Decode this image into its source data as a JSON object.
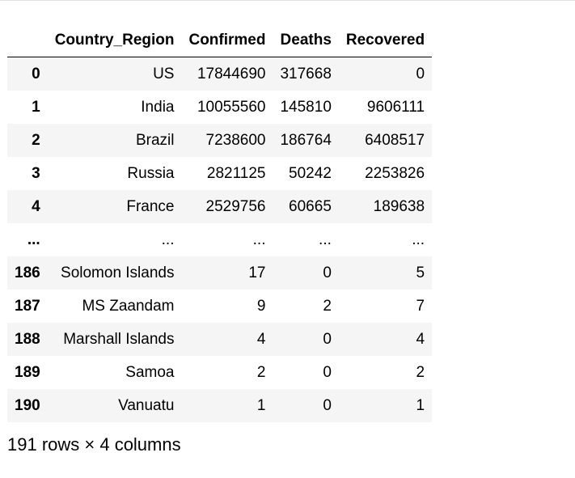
{
  "table": {
    "columns": [
      "",
      "Country_Region",
      "Confirmed",
      "Deaths",
      "Recovered"
    ],
    "rows": [
      [
        "0",
        "US",
        "17844690",
        "317668",
        "0"
      ],
      [
        "1",
        "India",
        "10055560",
        "145810",
        "9606111"
      ],
      [
        "2",
        "Brazil",
        "7238600",
        "186764",
        "6408517"
      ],
      [
        "3",
        "Russia",
        "2821125",
        "50242",
        "2253826"
      ],
      [
        "4",
        "France",
        "2529756",
        "60665",
        "189638"
      ],
      [
        "...",
        "...",
        "...",
        "...",
        "..."
      ],
      [
        "186",
        "Solomon Islands",
        "17",
        "0",
        "5"
      ],
      [
        "187",
        "MS Zaandam",
        "9",
        "2",
        "7"
      ],
      [
        "188",
        "Marshall Islands",
        "4",
        "0",
        "4"
      ],
      [
        "189",
        "Samoa",
        "2",
        "0",
        "2"
      ],
      [
        "190",
        "Vanuatu",
        "1",
        "0",
        "1"
      ]
    ]
  },
  "summary": "191 rows × 4 columns"
}
